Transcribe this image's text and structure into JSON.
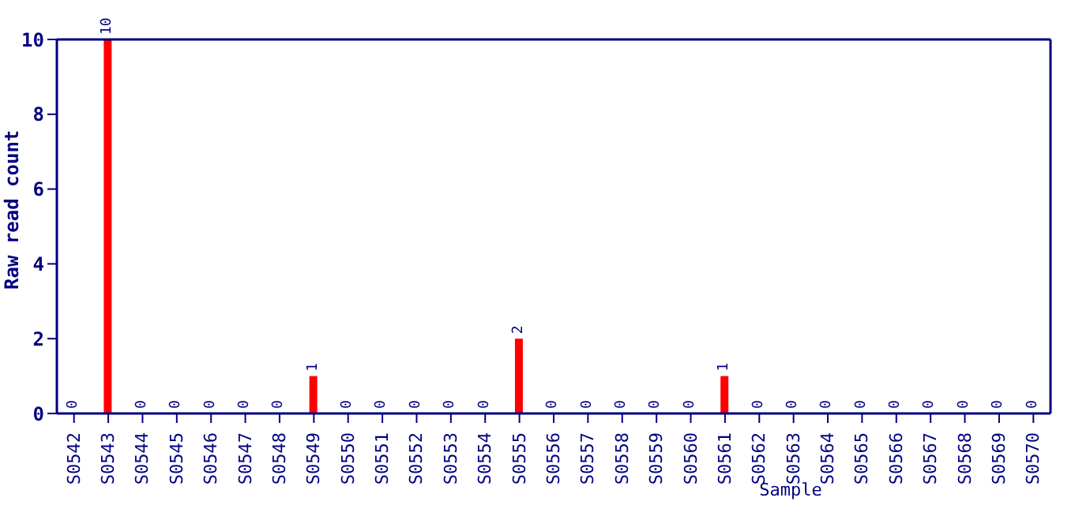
{
  "chart_data": {
    "type": "bar",
    "xlabel": "Sample",
    "ylabel": "Raw read count",
    "categories": [
      "S0542",
      "S0543",
      "S0544",
      "S0545",
      "S0546",
      "S0547",
      "S0548",
      "S0549",
      "S0550",
      "S0551",
      "S0552",
      "S0553",
      "S0554",
      "S0555",
      "S0556",
      "S0557",
      "S0558",
      "S0559",
      "S0560",
      "S0561",
      "S0562",
      "S0563",
      "S0564",
      "S0565",
      "S0566",
      "S0567",
      "S0568",
      "S0569",
      "S0570"
    ],
    "values": [
      0,
      10,
      0,
      0,
      0,
      0,
      0,
      1,
      0,
      0,
      0,
      0,
      0,
      2,
      0,
      0,
      0,
      0,
      0,
      1,
      0,
      0,
      0,
      0,
      0,
      0,
      0,
      0,
      0
    ],
    "color": "#ff0000",
    "ylim": [
      0,
      10
    ],
    "yticks": [
      0,
      2,
      4,
      6,
      8,
      10
    ],
    "grid": false,
    "data_labels": true
  }
}
